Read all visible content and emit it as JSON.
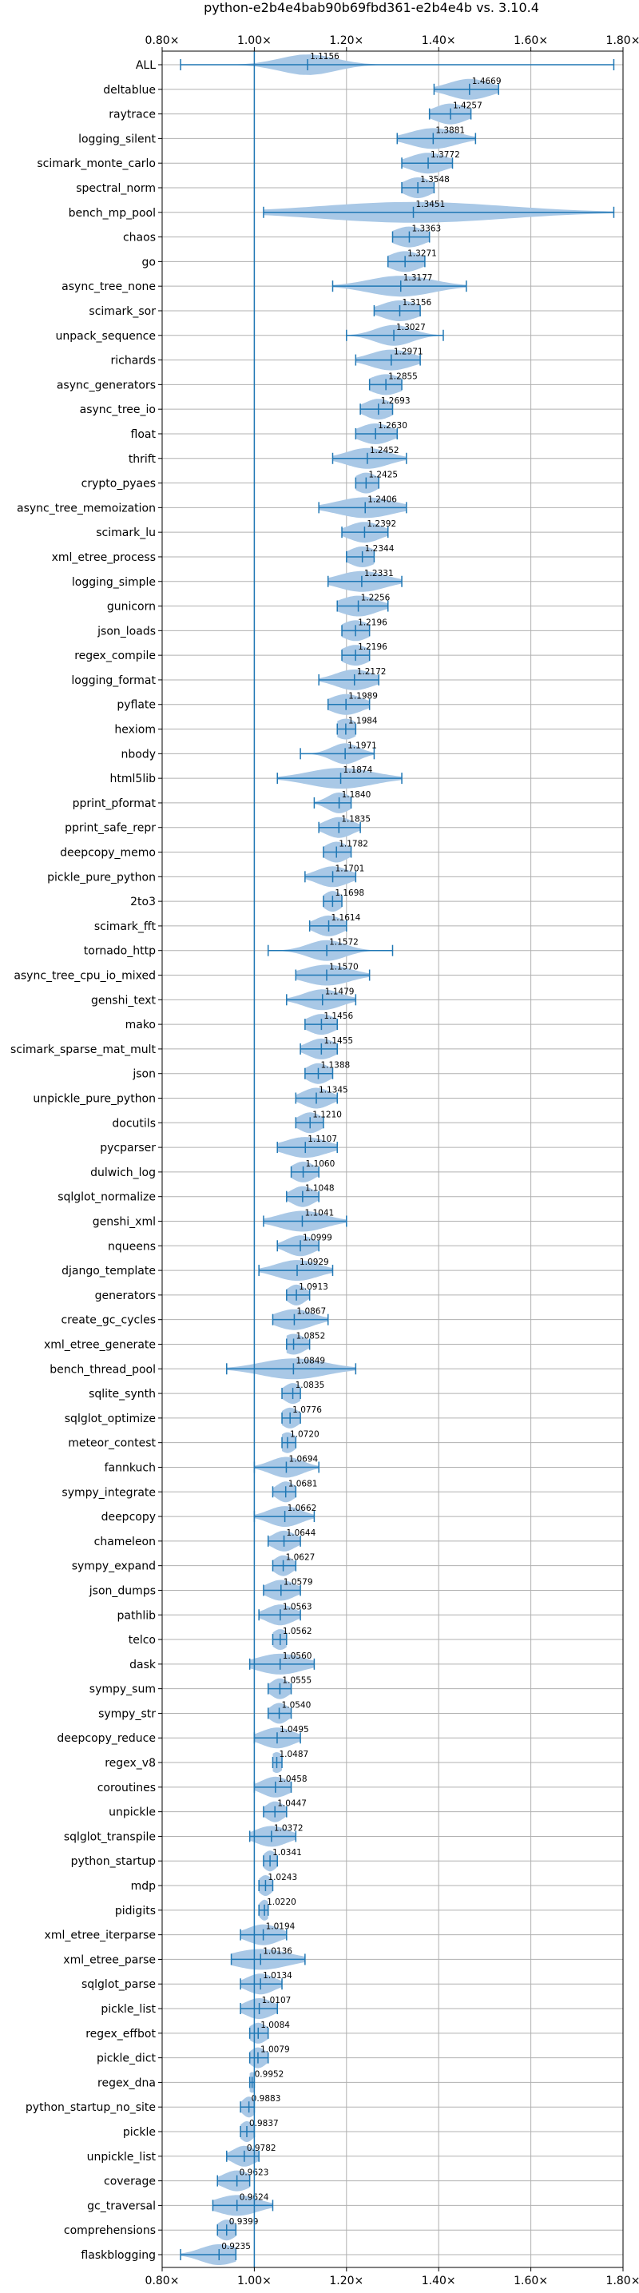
{
  "chart_data": {
    "type": "violin",
    "title": "python-e2b4e4bab90b69fbd361-e2b4e4b vs. 3.10.4",
    "xlabel": "",
    "ylabel": "",
    "xlim": [
      0.8,
      1.8
    ],
    "x_ticks": [
      0.8,
      1.0,
      1.2,
      1.4,
      1.6,
      1.8
    ],
    "x_tick_labels": [
      "0.80×",
      "1.00×",
      "1.20×",
      "1.40×",
      "1.60×",
      "1.80×"
    ],
    "reference_line": 1.0,
    "grid": true,
    "series_color": "#1f77b4",
    "violin_fill": "#a9c8e6",
    "benchmarks": [
      {
        "name": "ALL",
        "mean": 1.1156,
        "label": "1.1156",
        "min": 0.84,
        "max": 1.78,
        "spread": 0.06
      },
      {
        "name": "deltablue",
        "mean": 1.4669,
        "label": "1.4669",
        "min": 1.39,
        "max": 1.53,
        "spread": 0.045
      },
      {
        "name": "raytrace",
        "mean": 1.4257,
        "label": "1.4257",
        "min": 1.38,
        "max": 1.47,
        "spread": 0.035
      },
      {
        "name": "logging_silent",
        "mean": 1.3881,
        "label": "1.3881",
        "min": 1.31,
        "max": 1.48,
        "spread": 0.05
      },
      {
        "name": "scimark_monte_carlo",
        "mean": 1.3772,
        "label": "1.3772",
        "min": 1.32,
        "max": 1.43,
        "spread": 0.04
      },
      {
        "name": "spectral_norm",
        "mean": 1.3548,
        "label": "1.3548",
        "min": 1.32,
        "max": 1.39,
        "spread": 0.03
      },
      {
        "name": "bench_mp_pool",
        "mean": 1.3451,
        "label": "1.3451",
        "min": 1.02,
        "max": 1.78,
        "spread": 0.2
      },
      {
        "name": "chaos",
        "mean": 1.3363,
        "label": "1.3363",
        "min": 1.3,
        "max": 1.38,
        "spread": 0.035
      },
      {
        "name": "go",
        "mean": 1.3271,
        "label": "1.3271",
        "min": 1.29,
        "max": 1.37,
        "spread": 0.035
      },
      {
        "name": "async_tree_none",
        "mean": 1.3177,
        "label": "1.3177",
        "min": 1.17,
        "max": 1.46,
        "spread": 0.07
      },
      {
        "name": "scimark_sor",
        "mean": 1.3156,
        "label": "1.3156",
        "min": 1.26,
        "max": 1.36,
        "spread": 0.04
      },
      {
        "name": "unpack_sequence",
        "mean": 1.3027,
        "label": "1.3027",
        "min": 1.2,
        "max": 1.41,
        "spread": 0.04
      },
      {
        "name": "richards",
        "mean": 1.2971,
        "label": "1.2971",
        "min": 1.22,
        "max": 1.36,
        "spread": 0.045
      },
      {
        "name": "async_generators",
        "mean": 1.2855,
        "label": "1.2855",
        "min": 1.25,
        "max": 1.32,
        "spread": 0.035
      },
      {
        "name": "async_tree_io",
        "mean": 1.2693,
        "label": "1.2693",
        "min": 1.23,
        "max": 1.3,
        "spread": 0.03
      },
      {
        "name": "float",
        "mean": 1.263,
        "label": "1.2630",
        "min": 1.22,
        "max": 1.31,
        "spread": 0.035
      },
      {
        "name": "thrift",
        "mean": 1.2452,
        "label": "1.2452",
        "min": 1.17,
        "max": 1.33,
        "spread": 0.045
      },
      {
        "name": "crypto_pyaes",
        "mean": 1.2425,
        "label": "1.2425",
        "min": 1.22,
        "max": 1.27,
        "spread": 0.025
      },
      {
        "name": "async_tree_memoization",
        "mean": 1.2406,
        "label": "1.2406",
        "min": 1.14,
        "max": 1.33,
        "spread": 0.06
      },
      {
        "name": "scimark_lu",
        "mean": 1.2392,
        "label": "1.2392",
        "min": 1.19,
        "max": 1.29,
        "spread": 0.035
      },
      {
        "name": "xml_etree_process",
        "mean": 1.2344,
        "label": "1.2344",
        "min": 1.2,
        "max": 1.26,
        "spread": 0.03
      },
      {
        "name": "logging_simple",
        "mean": 1.2331,
        "label": "1.2331",
        "min": 1.16,
        "max": 1.32,
        "spread": 0.05
      },
      {
        "name": "gunicorn",
        "mean": 1.2256,
        "label": "1.2256",
        "min": 1.18,
        "max": 1.29,
        "spread": 0.04
      },
      {
        "name": "json_loads",
        "mean": 1.2196,
        "label": "1.2196",
        "min": 1.19,
        "max": 1.25,
        "spread": 0.03
      },
      {
        "name": "regex_compile",
        "mean": 1.2196,
        "label": "1.2196",
        "min": 1.19,
        "max": 1.25,
        "spread": 0.03
      },
      {
        "name": "logging_format",
        "mean": 1.2172,
        "label": "1.2172",
        "min": 1.14,
        "max": 1.27,
        "spread": 0.04
      },
      {
        "name": "pyflate",
        "mean": 1.1989,
        "label": "1.1989",
        "min": 1.16,
        "max": 1.25,
        "spread": 0.035
      },
      {
        "name": "hexiom",
        "mean": 1.1984,
        "label": "1.1984",
        "min": 1.18,
        "max": 1.22,
        "spread": 0.025
      },
      {
        "name": "nbody",
        "mean": 1.1971,
        "label": "1.1971",
        "min": 1.1,
        "max": 1.26,
        "spread": 0.03
      },
      {
        "name": "html5lib",
        "mean": 1.1874,
        "label": "1.1874",
        "min": 1.05,
        "max": 1.32,
        "spread": 0.07
      },
      {
        "name": "pprint_pformat",
        "mean": 1.184,
        "label": "1.1840",
        "min": 1.13,
        "max": 1.21,
        "spread": 0.025
      },
      {
        "name": "pprint_safe_repr",
        "mean": 1.1835,
        "label": "1.1835",
        "min": 1.14,
        "max": 1.23,
        "spread": 0.03
      },
      {
        "name": "deepcopy_memo",
        "mean": 1.1782,
        "label": "1.1782",
        "min": 1.15,
        "max": 1.21,
        "spread": 0.025
      },
      {
        "name": "pickle_pure_python",
        "mean": 1.1701,
        "label": "1.1701",
        "min": 1.11,
        "max": 1.22,
        "spread": 0.035
      },
      {
        "name": "2to3",
        "mean": 1.1698,
        "label": "1.1698",
        "min": 1.15,
        "max": 1.19,
        "spread": 0.02
      },
      {
        "name": "scimark_fft",
        "mean": 1.1614,
        "label": "1.1614",
        "min": 1.12,
        "max": 1.2,
        "spread": 0.03
      },
      {
        "name": "tornado_http",
        "mean": 1.1572,
        "label": "1.1572",
        "min": 1.03,
        "max": 1.3,
        "spread": 0.04
      },
      {
        "name": "async_tree_cpu_io_mixed",
        "mean": 1.157,
        "label": "1.1570",
        "min": 1.09,
        "max": 1.25,
        "spread": 0.05
      },
      {
        "name": "genshi_text",
        "mean": 1.1479,
        "label": "1.1479",
        "min": 1.07,
        "max": 1.22,
        "spread": 0.04
      },
      {
        "name": "mako",
        "mean": 1.1456,
        "label": "1.1456",
        "min": 1.11,
        "max": 1.18,
        "spread": 0.03
      },
      {
        "name": "scimark_sparse_mat_mult",
        "mean": 1.1455,
        "label": "1.1455",
        "min": 1.1,
        "max": 1.18,
        "spread": 0.03
      },
      {
        "name": "json",
        "mean": 1.1388,
        "label": "1.1388",
        "min": 1.11,
        "max": 1.17,
        "spread": 0.025
      },
      {
        "name": "unpickle_pure_python",
        "mean": 1.1345,
        "label": "1.1345",
        "min": 1.09,
        "max": 1.18,
        "spread": 0.03
      },
      {
        "name": "docutils",
        "mean": 1.121,
        "label": "1.1210",
        "min": 1.09,
        "max": 1.15,
        "spread": 0.025
      },
      {
        "name": "pycparser",
        "mean": 1.1107,
        "label": "1.1107",
        "min": 1.05,
        "max": 1.18,
        "spread": 0.045
      },
      {
        "name": "dulwich_log",
        "mean": 1.106,
        "label": "1.1060",
        "min": 1.08,
        "max": 1.14,
        "spread": 0.025
      },
      {
        "name": "sqlglot_normalize",
        "mean": 1.1048,
        "label": "1.1048",
        "min": 1.07,
        "max": 1.14,
        "spread": 0.025
      },
      {
        "name": "genshi_xml",
        "mean": 1.1041,
        "label": "1.1041",
        "min": 1.02,
        "max": 1.2,
        "spread": 0.05
      },
      {
        "name": "nqueens",
        "mean": 1.0999,
        "label": "1.0999",
        "min": 1.05,
        "max": 1.14,
        "spread": 0.03
      },
      {
        "name": "django_template",
        "mean": 1.0929,
        "label": "1.0929",
        "min": 1.01,
        "max": 1.17,
        "spread": 0.045
      },
      {
        "name": "generators",
        "mean": 1.0913,
        "label": "1.0913",
        "min": 1.07,
        "max": 1.12,
        "spread": 0.02
      },
      {
        "name": "create_gc_cycles",
        "mean": 1.0867,
        "label": "1.0867",
        "min": 1.04,
        "max": 1.16,
        "spread": 0.04
      },
      {
        "name": "xml_etree_generate",
        "mean": 1.0852,
        "label": "1.0852",
        "min": 1.07,
        "max": 1.12,
        "spread": 0.025
      },
      {
        "name": "bench_thread_pool",
        "mean": 1.0849,
        "label": "1.0849",
        "min": 0.94,
        "max": 1.22,
        "spread": 0.07
      },
      {
        "name": "sqlite_synth",
        "mean": 1.0835,
        "label": "1.0835",
        "min": 1.06,
        "max": 1.1,
        "spread": 0.02
      },
      {
        "name": "sqlglot_optimize",
        "mean": 1.0776,
        "label": "1.0776",
        "min": 1.06,
        "max": 1.1,
        "spread": 0.02
      },
      {
        "name": "meteor_contest",
        "mean": 1.072,
        "label": "1.0720",
        "min": 1.06,
        "max": 1.09,
        "spread": 0.018
      },
      {
        "name": "fannkuch",
        "mean": 1.0694,
        "label": "1.0694",
        "min": 1.0,
        "max": 1.14,
        "spread": 0.035
      },
      {
        "name": "sympy_integrate",
        "mean": 1.0681,
        "label": "1.0681",
        "min": 1.04,
        "max": 1.09,
        "spread": 0.02
      },
      {
        "name": "deepcopy",
        "mean": 1.0662,
        "label": "1.0662",
        "min": 1.0,
        "max": 1.13,
        "spread": 0.035
      },
      {
        "name": "chameleon",
        "mean": 1.0644,
        "label": "1.0644",
        "min": 1.03,
        "max": 1.1,
        "spread": 0.025
      },
      {
        "name": "sympy_expand",
        "mean": 1.0627,
        "label": "1.0627",
        "min": 1.04,
        "max": 1.09,
        "spread": 0.02
      },
      {
        "name": "json_dumps",
        "mean": 1.0579,
        "label": "1.0579",
        "min": 1.02,
        "max": 1.1,
        "spread": 0.03
      },
      {
        "name": "pathlib",
        "mean": 1.0563,
        "label": "1.0563",
        "min": 1.01,
        "max": 1.1,
        "spread": 0.03
      },
      {
        "name": "telco",
        "mean": 1.0562,
        "label": "1.0562",
        "min": 1.04,
        "max": 1.07,
        "spread": 0.018
      },
      {
        "name": "dask",
        "mean": 1.056,
        "label": "1.0560",
        "min": 0.99,
        "max": 1.13,
        "spread": 0.05
      },
      {
        "name": "sympy_sum",
        "mean": 1.0555,
        "label": "1.0555",
        "min": 1.03,
        "max": 1.08,
        "spread": 0.02
      },
      {
        "name": "sympy_str",
        "mean": 1.054,
        "label": "1.0540",
        "min": 1.03,
        "max": 1.08,
        "spread": 0.02
      },
      {
        "name": "deepcopy_reduce",
        "mean": 1.0495,
        "label": "1.0495",
        "min": 1.0,
        "max": 1.1,
        "spread": 0.035
      },
      {
        "name": "regex_v8",
        "mean": 1.0487,
        "label": "1.0487",
        "min": 1.04,
        "max": 1.06,
        "spread": 0.015
      },
      {
        "name": "coroutines",
        "mean": 1.0458,
        "label": "1.0458",
        "min": 1.0,
        "max": 1.08,
        "spread": 0.03
      },
      {
        "name": "unpickle",
        "mean": 1.0447,
        "label": "1.0447",
        "min": 1.02,
        "max": 1.07,
        "spread": 0.02
      },
      {
        "name": "sqlglot_transpile",
        "mean": 1.0372,
        "label": "1.0372",
        "min": 0.99,
        "max": 1.09,
        "spread": 0.035
      },
      {
        "name": "python_startup",
        "mean": 1.0341,
        "label": "1.0341",
        "min": 1.02,
        "max": 1.05,
        "spread": 0.015
      },
      {
        "name": "mdp",
        "mean": 1.0243,
        "label": "1.0243",
        "min": 1.01,
        "max": 1.04,
        "spread": 0.015
      },
      {
        "name": "pidigits",
        "mean": 1.022,
        "label": "1.0220",
        "min": 1.01,
        "max": 1.03,
        "spread": 0.012
      },
      {
        "name": "xml_etree_iterparse",
        "mean": 1.0194,
        "label": "1.0194",
        "min": 0.97,
        "max": 1.07,
        "spread": 0.035
      },
      {
        "name": "xml_etree_parse",
        "mean": 1.0136,
        "label": "1.0136",
        "min": 0.95,
        "max": 1.11,
        "spread": 0.06
      },
      {
        "name": "sqlglot_parse",
        "mean": 1.0134,
        "label": "1.0134",
        "min": 0.97,
        "max": 1.06,
        "spread": 0.03
      },
      {
        "name": "pickle_list",
        "mean": 1.0107,
        "label": "1.0107",
        "min": 0.97,
        "max": 1.05,
        "spread": 0.03
      },
      {
        "name": "regex_effbot",
        "mean": 1.0084,
        "label": "1.0084",
        "min": 0.99,
        "max": 1.03,
        "spread": 0.02
      },
      {
        "name": "pickle_dict",
        "mean": 1.0079,
        "label": "1.0079",
        "min": 0.99,
        "max": 1.03,
        "spread": 0.018
      },
      {
        "name": "regex_dna",
        "mean": 0.9952,
        "label": "0.9952",
        "min": 0.99,
        "max": 1.0,
        "spread": 0.01
      },
      {
        "name": "python_startup_no_site",
        "mean": 0.9883,
        "label": "0.9883",
        "min": 0.97,
        "max": 1.0,
        "spread": 0.015
      },
      {
        "name": "pickle",
        "mean": 0.9837,
        "label": "0.9837",
        "min": 0.97,
        "max": 1.0,
        "spread": 0.015
      },
      {
        "name": "unpickle_list",
        "mean": 0.9782,
        "label": "0.9782",
        "min": 0.94,
        "max": 1.01,
        "spread": 0.025
      },
      {
        "name": "coverage",
        "mean": 0.9623,
        "label": "0.9623",
        "min": 0.92,
        "max": 0.99,
        "spread": 0.03
      },
      {
        "name": "gc_traversal",
        "mean": 0.9624,
        "label": "0.9624",
        "min": 0.91,
        "max": 1.04,
        "spread": 0.045
      },
      {
        "name": "comprehensions",
        "mean": 0.9399,
        "label": "0.9399",
        "min": 0.92,
        "max": 0.96,
        "spread": 0.02
      },
      {
        "name": "flaskblogging",
        "mean": 0.9235,
        "label": "0.9235",
        "min": 0.84,
        "max": 0.96,
        "spread": 0.04
      }
    ]
  }
}
